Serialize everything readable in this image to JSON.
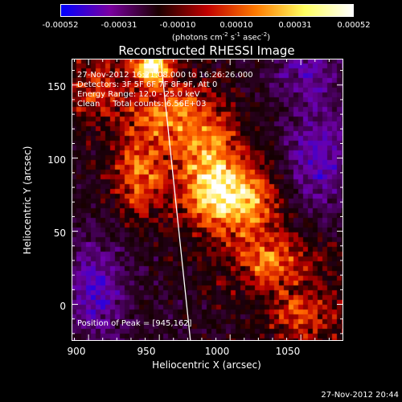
{
  "colorbar": {
    "ticks": [
      "-0.00052",
      "-0.00031",
      "-0.00010",
      "0.00010",
      "0.00031",
      "0.00052"
    ],
    "units_main": "(photons cm",
    "units_e1": "-2",
    "units_s": " s",
    "units_e2": "-1",
    "units_asec": " asec",
    "units_e3": "-2",
    "units_close": ")",
    "colors": [
      "#0000ff",
      "#7a00a0",
      "#1a0000",
      "#c00000",
      "#ff7a00",
      "#ffff60",
      "#ffffff"
    ]
  },
  "chart_data": {
    "type": "heatmap",
    "title": "Reconstructed RHESSI Image",
    "xlabel": "Heliocentric X (arcsec)",
    "ylabel": "Heliocentric Y (arcsec)",
    "xlim": [
      888,
      1080
    ],
    "ylim": [
      -25,
      168
    ],
    "xticks": [
      "900",
      "950",
      "1000",
      "1050"
    ],
    "yticks": [
      "0",
      "50",
      "100",
      "150"
    ],
    "peak": [
      945,
      162
    ],
    "annotations": {
      "time_range": "27-Nov-2012 16:21:08.000 to 16:26:26.000",
      "detectors": "Detectors: 3F 5F 6F 7F 8F 9F, Att 0",
      "energy": "Energy Range: 12.0 - 25.0 keV",
      "clean": "Clean     Total counts: 6.56E+03",
      "peak_text": "Position of Peak = [945,162]"
    },
    "sources": [
      {
        "x": 945,
        "y": 162,
        "amp": 1.0,
        "sx": 9,
        "sy": 7
      },
      {
        "x": 1003,
        "y": 73,
        "amp": 0.75,
        "sx": 22,
        "sy": 16
      },
      {
        "x": 985,
        "y": 100,
        "amp": 0.5,
        "sx": 15,
        "sy": 22
      },
      {
        "x": 935,
        "y": 88,
        "amp": 0.55,
        "sx": 12,
        "sy": 18
      },
      {
        "x": 958,
        "y": 130,
        "amp": 0.5,
        "sx": 18,
        "sy": 14
      },
      {
        "x": 1028,
        "y": 30,
        "amp": 0.45,
        "sx": 18,
        "sy": 14
      },
      {
        "x": 1048,
        "y": -8,
        "amp": 0.4,
        "sx": 14,
        "sy": 10
      },
      {
        "x": 905,
        "y": 145,
        "amp": 0.3,
        "sx": 12,
        "sy": 14
      }
    ],
    "negative_regions": [
      {
        "x": 1060,
        "y": 95,
        "amp": 0.55,
        "sx": 18,
        "sy": 28
      },
      {
        "x": 905,
        "y": 10,
        "amp": 0.5,
        "sx": 14,
        "sy": 22
      },
      {
        "x": 1055,
        "y": 160,
        "amp": 0.35,
        "sx": 18,
        "sy": 14
      }
    ],
    "limb_line": {
      "x1": 951,
      "y1": 168,
      "x2": 972,
      "y2": -25
    }
  },
  "footer": {
    "timestamp": "27-Nov-2012 20:44"
  }
}
